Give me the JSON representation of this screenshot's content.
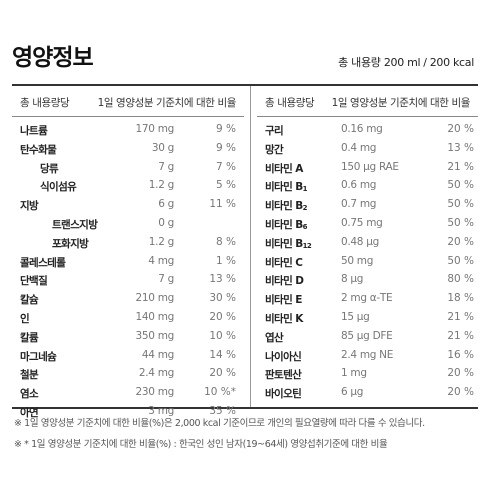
{
  "title": "영양정보",
  "total": {
    "volume": "총 내용량 200 ml",
    "kcal": "200 kcal",
    "separator": "/"
  },
  "header": {
    "name": "총 내용량당",
    "ratio": "1일 영양성분 기준치에 대한 비율"
  },
  "left_rows": [
    {
      "name": "나트륨",
      "amount": "170 mg",
      "percent": "9 %",
      "indent": 0
    },
    {
      "name": "탄수화물",
      "amount": "30 g",
      "percent": "9 %",
      "indent": 0
    },
    {
      "name": "당류",
      "amount": "7 g",
      "percent": "7 %",
      "indent": 1
    },
    {
      "name": "식이섬유",
      "amount": "1.2 g",
      "percent": "5 %",
      "indent": 1
    },
    {
      "name": "지방",
      "amount": "6 g",
      "percent": "11 %",
      "indent": 0
    },
    {
      "name": "트랜스지방",
      "amount": "0 g",
      "percent": "",
      "indent": 2
    },
    {
      "name": "포화지방",
      "amount": "1.2 g",
      "percent": "8 %",
      "indent": 2
    },
    {
      "name": "콜레스테롤",
      "amount": "4 mg",
      "percent": "1 %",
      "indent": 0
    },
    {
      "name": "단백질",
      "amount": "7 g",
      "percent": "13 %",
      "indent": 0
    },
    {
      "name": "칼슘",
      "amount": "210 mg",
      "percent": "30 %",
      "indent": 0
    },
    {
      "name": "인",
      "amount": "140 mg",
      "percent": "20 %",
      "indent": 0
    },
    {
      "name": "칼륨",
      "amount": "350 mg",
      "percent": "10 %",
      "indent": 0
    },
    {
      "name": "마그네슘",
      "amount": "44 mg",
      "percent": "14 %",
      "indent": 0
    },
    {
      "name": "철분",
      "amount": "2.4 mg",
      "percent": "20 %",
      "indent": 0
    },
    {
      "name": "염소",
      "amount": "230 mg",
      "percent": "10 %*",
      "indent": 0
    },
    {
      "name": "아연",
      "amount": "3 mg",
      "percent": "35 %",
      "indent": 0
    }
  ],
  "right_rows": [
    {
      "name": "구리",
      "sub": "",
      "amount": "0.16 mg",
      "percent": "20 %"
    },
    {
      "name": "망간",
      "sub": "",
      "amount": "0.4 mg",
      "percent": "13 %"
    },
    {
      "name": "비타민 A",
      "sub": "",
      "amount": "150 μg RAE",
      "percent": "21 %"
    },
    {
      "name": "비타민 B",
      "sub": "1",
      "amount": "0.6 mg",
      "percent": "50 %"
    },
    {
      "name": "비타민 B",
      "sub": "2",
      "amount": "0.7 mg",
      "percent": "50 %"
    },
    {
      "name": "비타민 B",
      "sub": "6",
      "amount": "0.75 mg",
      "percent": "50 %"
    },
    {
      "name": "비타민 B",
      "sub": "12",
      "amount": "0.48 μg",
      "percent": "20 %"
    },
    {
      "name": "비타민 C",
      "sub": "",
      "amount": "50 mg",
      "percent": "50 %"
    },
    {
      "name": "비타민 D",
      "sub": "",
      "amount": "8 μg",
      "percent": "80 %"
    },
    {
      "name": "비타민 E",
      "sub": "",
      "amount": "2 mg α-TE",
      "percent": "18 %"
    },
    {
      "name": "비타민 K",
      "sub": "",
      "amount": "15 μg",
      "percent": "21 %"
    },
    {
      "name": "엽산",
      "sub": "",
      "amount": "85 μg DFE",
      "percent": "21 %"
    },
    {
      "name": "나이아신",
      "sub": "",
      "amount": "2.4 mg NE",
      "percent": "16 %"
    },
    {
      "name": "판토텐산",
      "sub": "",
      "amount": "1 mg",
      "percent": "20 %"
    },
    {
      "name": "바이오틴",
      "sub": "",
      "amount": "6 μg",
      "percent": "20 %"
    }
  ],
  "notes": [
    "※ 1일 영양성분 기준치에 대한 비율(%)은 2,000 kcal 기준이므로 개인의 필요열량에 따라 다를 수 있습니다.",
    "※ * 1일 영양성분 기준치에 대한 비율(%) : 한국인 성인 남자(19~64세) 영양섭취기준에 대한 비율"
  ]
}
